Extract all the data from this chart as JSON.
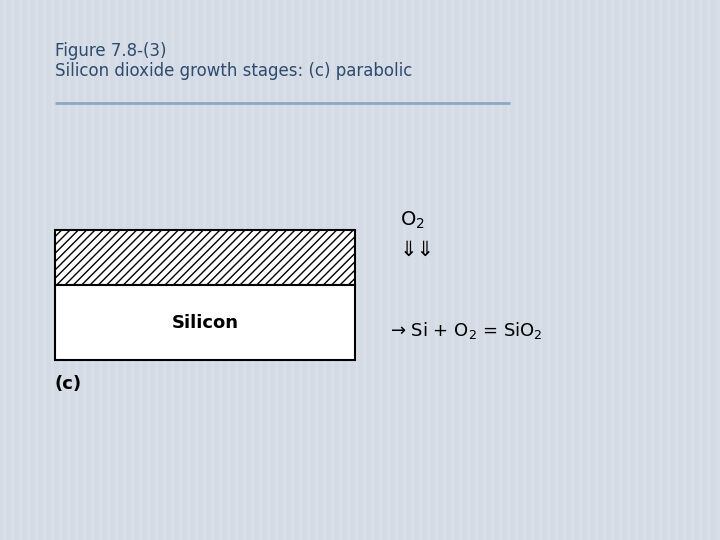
{
  "title_line1": "Figure 7.8-(3)",
  "title_line2": "Silicon dioxide growth stages: (c) parabolic",
  "title_color": "#2e4a6e",
  "title_fontsize": 12,
  "bg_color": "#d8dfe8",
  "separator_color": "#8ea8c3",
  "diagram_label": "(c)",
  "silicon_label": "Silicon",
  "o2_text": "O$_2$",
  "arrow_text": "⇓⇓",
  "reaction_text": "→ Si + O$_2$ = SiO$_2$",
  "hatch_pattern": "////",
  "hatch_facecolor": "white",
  "hatch_edgecolor": "black",
  "silicon_facecolor": "white",
  "silicon_edgecolor": "black"
}
